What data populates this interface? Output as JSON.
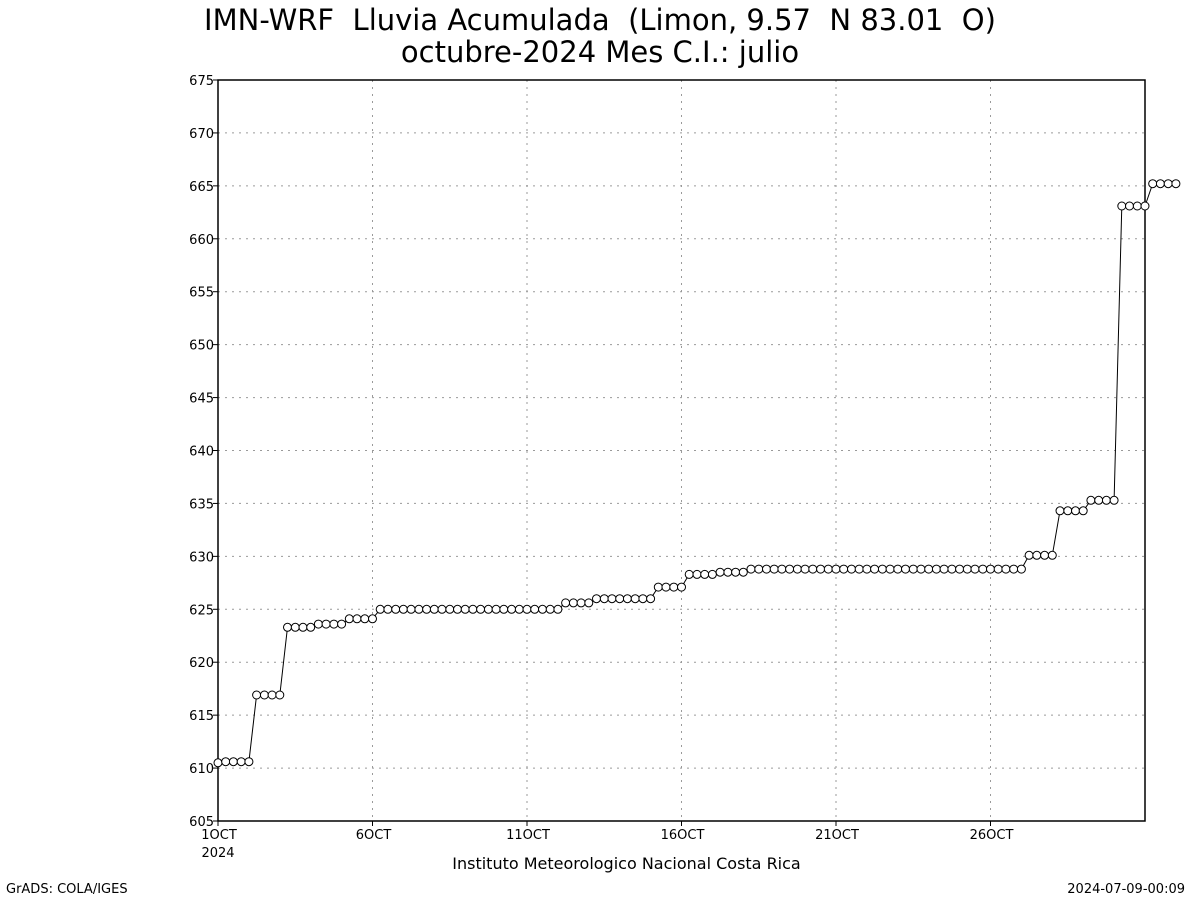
{
  "title_line1": "IMN-WRF  Lluvia Acumulada  (Limon, 9.57  N 83.01  O)",
  "title_line2": "octubre-2024 Mes C.I.: julio",
  "footer_institute": "Instituto Meteorologico Nacional Costa Rica",
  "footer_left": "GrADS: COLA/IGES",
  "footer_right": "2024-07-09-00:09",
  "chart_data": {
    "type": "line",
    "marker": "open-circle",
    "grid": true,
    "xlim": [
      1,
      31
    ],
    "ylim": [
      605,
      675
    ],
    "y_ticks": [
      605,
      610,
      615,
      620,
      625,
      630,
      635,
      640,
      645,
      650,
      655,
      660,
      665,
      670,
      675
    ],
    "x_ticks": [
      {
        "x": 1,
        "label": "1OCT",
        "sub": "2024"
      },
      {
        "x": 6,
        "label": "6OCT"
      },
      {
        "x": 11,
        "label": "11OCT"
      },
      {
        "x": 16,
        "label": "16OCT"
      },
      {
        "x": 21,
        "label": "21OCT"
      },
      {
        "x": 26,
        "label": "26OCT"
      }
    ],
    "x_step": 0.25,
    "values": [
      610.5,
      610.6,
      610.6,
      610.6,
      610.6,
      616.9,
      616.9,
      616.9,
      616.9,
      623.3,
      623.3,
      623.3,
      623.3,
      623.6,
      623.6,
      623.6,
      623.6,
      624.1,
      624.1,
      624.1,
      624.1,
      625.0,
      625.0,
      625.0,
      625.0,
      625.0,
      625.0,
      625.0,
      625.0,
      625.0,
      625.0,
      625.0,
      625.0,
      625.0,
      625.0,
      625.0,
      625.0,
      625.0,
      625.0,
      625.0,
      625.0,
      625.0,
      625.0,
      625.0,
      625.0,
      625.6,
      625.6,
      625.6,
      625.6,
      626.0,
      626.0,
      626.0,
      626.0,
      626.0,
      626.0,
      626.0,
      626.0,
      627.1,
      627.1,
      627.1,
      627.1,
      628.3,
      628.3,
      628.3,
      628.3,
      628.5,
      628.5,
      628.5,
      628.5,
      628.8,
      628.8,
      628.8,
      628.8,
      628.8,
      628.8,
      628.8,
      628.8,
      628.8,
      628.8,
      628.8,
      628.8,
      628.8,
      628.8,
      628.8,
      628.8,
      628.8,
      628.8,
      628.8,
      628.8,
      628.8,
      628.8,
      628.8,
      628.8,
      628.8,
      628.8,
      628.8,
      628.8,
      628.8,
      628.8,
      628.8,
      628.8,
      628.8,
      628.8,
      628.8,
      628.8,
      630.1,
      630.1,
      630.1,
      630.1,
      634.3,
      634.3,
      634.3,
      634.3,
      635.3,
      635.3,
      635.3,
      635.3,
      663.1,
      663.1,
      663.1,
      663.1,
      665.2,
      665.2,
      665.2,
      665.2
    ]
  }
}
